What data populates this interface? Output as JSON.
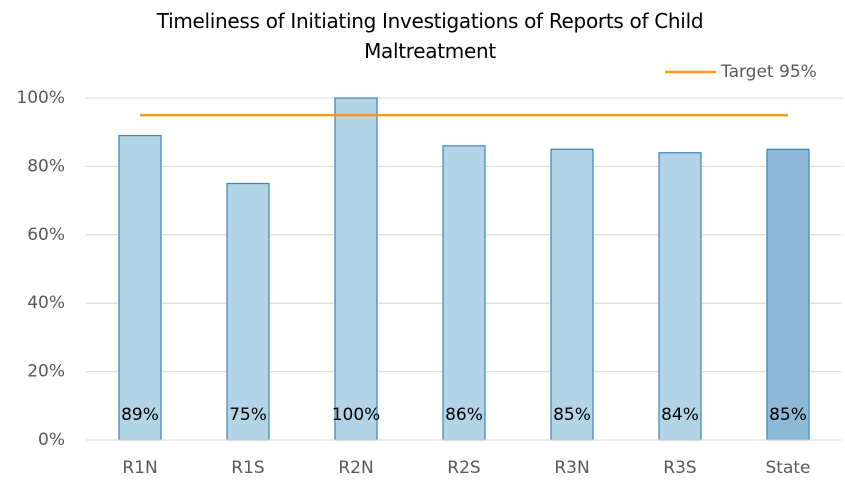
{
  "chart_data": {
    "type": "bar",
    "title": "Timeliness of Initiating Investigations of Reports of Child Maltreatment",
    "categories": [
      "R1N",
      "R1S",
      "R2N",
      "R2S",
      "R3N",
      "R3S",
      "State"
    ],
    "values": [
      89,
      75,
      100,
      86,
      85,
      84,
      85
    ],
    "value_labels": [
      "89%",
      "75%",
      "100%",
      "86%",
      "85%",
      "84%",
      "85%"
    ],
    "colors": [
      "#b3d3e6",
      "#b3d3e6",
      "#b3d3e6",
      "#b3d3e6",
      "#b3d3e6",
      "#b3d3e6",
      "#8cbad6"
    ],
    "target": {
      "name": "Target 95%",
      "value": 95,
      "color": "#f59a1b"
    },
    "ylim": [
      0,
      100
    ],
    "yticks": [
      {
        "value": 0,
        "label": "0%"
      },
      {
        "value": 20,
        "label": "20%"
      },
      {
        "value": 40,
        "label": "40%"
      },
      {
        "value": 60,
        "label": "60%"
      },
      {
        "value": 80,
        "label": "80%"
      },
      {
        "value": 100,
        "label": "100%"
      }
    ],
    "grid": true,
    "legend": "top-right"
  }
}
